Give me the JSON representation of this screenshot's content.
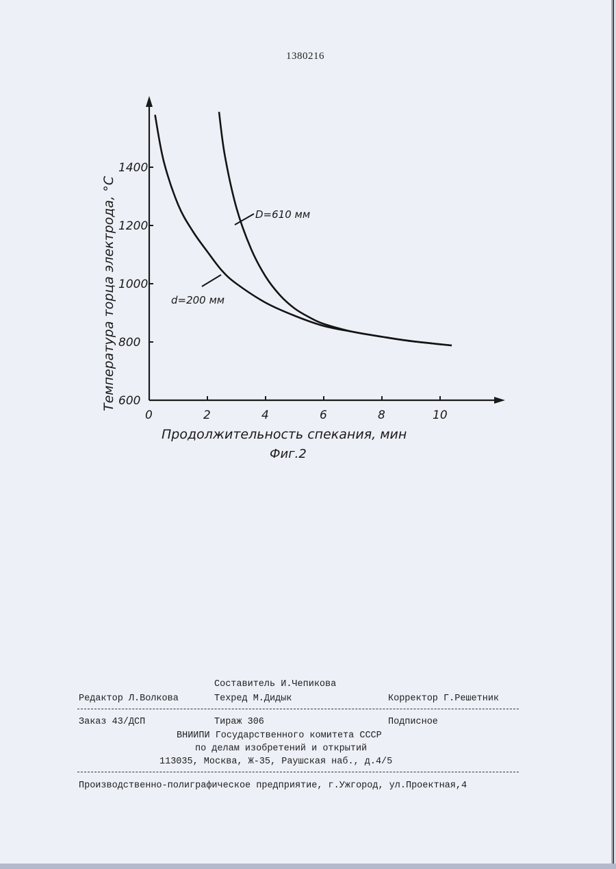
{
  "header": {
    "patent_number": "1380216"
  },
  "chart_data": {
    "type": "line",
    "title": "",
    "xlabel": "Продолжительность спекания, мин",
    "ylabel": "Температура торца электрода, °С",
    "caption": "Фиг.2",
    "xlim": [
      0,
      12
    ],
    "ylim": [
      600,
      1600
    ],
    "x_ticks": [
      0,
      2,
      4,
      6,
      8,
      10
    ],
    "y_ticks": [
      600,
      800,
      1000,
      1200,
      1400
    ],
    "grid": false,
    "legend": "none",
    "series": [
      {
        "name": "d=200 мм",
        "x": [
          0.2,
          0.5,
          1.0,
          1.5,
          2.0,
          2.5,
          3.0,
          4.0,
          5.0,
          6.0,
          7.0,
          8.0,
          9.0,
          10.4
        ],
        "y": [
          1580,
          1420,
          1270,
          1180,
          1110,
          1045,
          1000,
          935,
          890,
          855,
          835,
          818,
          803,
          788
        ]
      },
      {
        "name": "D=610 мм",
        "x": [
          2.4,
          2.6,
          3.0,
          3.5,
          4.0,
          4.5,
          5.0,
          5.5,
          6.0,
          7.0,
          8.0,
          9.0,
          10.4
        ],
        "y": [
          1590,
          1440,
          1260,
          1120,
          1025,
          960,
          915,
          885,
          862,
          835,
          818,
          803,
          788
        ]
      }
    ],
    "annotations": [
      "D=610 мм",
      "d=200 мм"
    ]
  },
  "colophon": {
    "compiler": "Составитель И.Чепикова",
    "editor": "Редактор Л.Волкова",
    "techred": "Техред М.Дидык",
    "corrector": "Корректор Г.Решетник",
    "order": "Заказ 43/ДСП",
    "circulation": "Тираж 306",
    "subscription": "Подписное",
    "org_line1": "ВНИИПИ Государственного комитета СССР",
    "org_line2": "по делам изобретений и открытий",
    "org_address": "113035, Москва, Ж-35, Раушская наб., д.4/5",
    "printer": "Производственно-полиграфическое предприятие, г.Ужгород, ул.Проектная,4"
  }
}
